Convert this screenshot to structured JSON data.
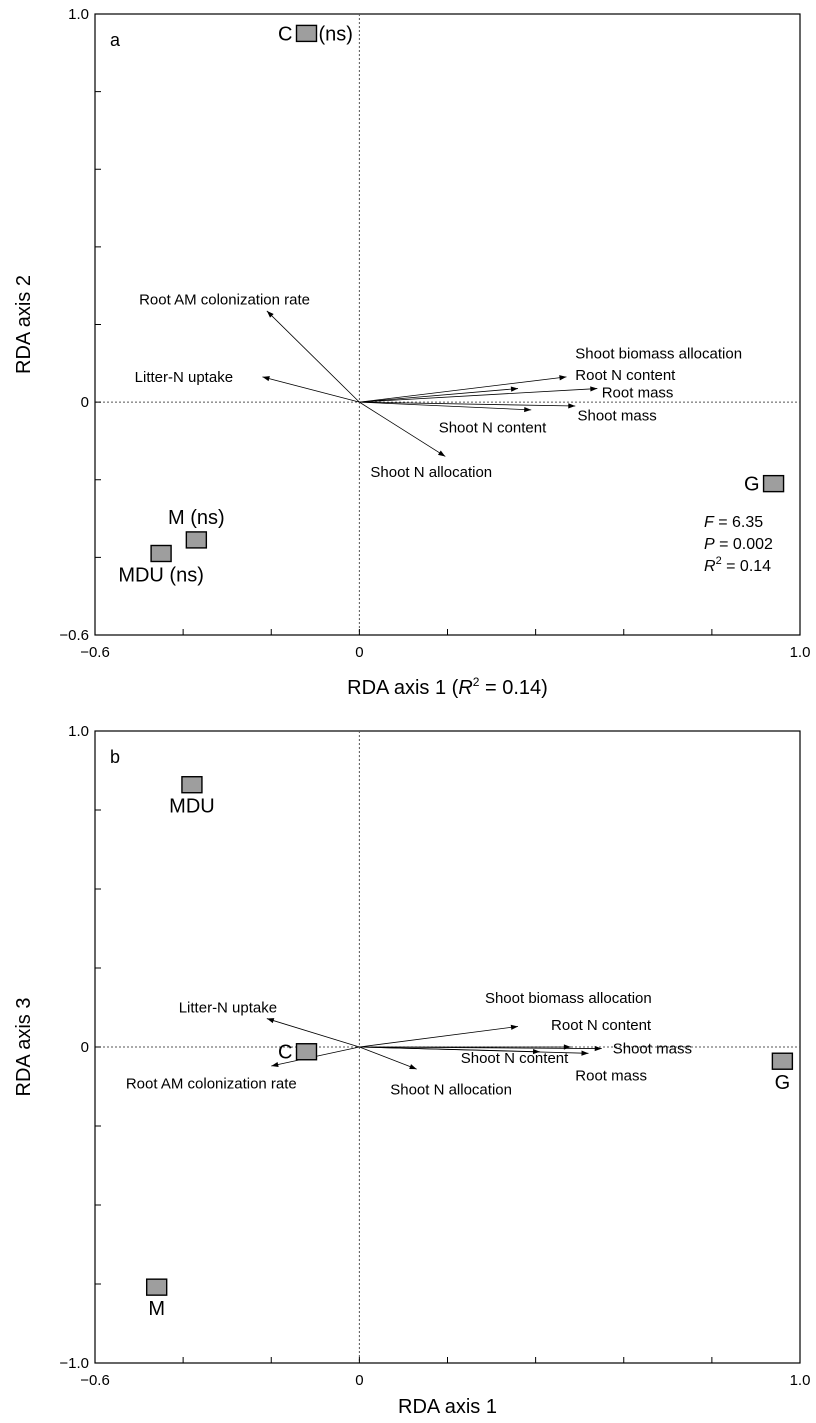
{
  "chart_data": [
    {
      "type": "scatter",
      "panel_label": "a",
      "xlabel_prefix": "RDA axis 1 (",
      "xlabel_r": "R",
      "xlabel_sup": "2",
      "xlabel_suffix": " = 0.14)",
      "ylabel": "RDA axis 2",
      "xlim": [
        -0.6,
        1.0
      ],
      "ylim": [
        -0.6,
        1.0
      ],
      "x_tick_labels": [
        {
          "value": -0.6,
          "label": "−0.6"
        },
        {
          "value": 0,
          "label": "0"
        },
        {
          "value": 1.0,
          "label": "1.0"
        }
      ],
      "y_tick_labels": [
        {
          "value": -0.6,
          "label": "−0.6"
        },
        {
          "value": 0,
          "label": "0"
        },
        {
          "value": 1.0,
          "label": "1.0"
        }
      ],
      "x_minor_ticks": [
        -0.4,
        -0.2,
        0.2,
        0.4,
        0.6,
        0.8
      ],
      "y_minor_ticks": [
        -0.4,
        -0.2,
        0.2,
        0.4,
        0.6,
        0.8
      ],
      "sites": [
        {
          "name": "C",
          "suffix": "(ns)",
          "x": -0.12,
          "y": 0.95,
          "label_pos": "left"
        },
        {
          "name": "M (ns)",
          "x": -0.37,
          "y": -0.355,
          "label_pos": "above"
        },
        {
          "name": "MDU (ns)",
          "x": -0.45,
          "y": -0.39,
          "label_pos": "below"
        },
        {
          "name": "G",
          "x": 0.94,
          "y": -0.21,
          "label_pos": "left"
        }
      ],
      "arrows": [
        {
          "label": "Root AM colonization rate",
          "x": -0.21,
          "y": 0.235,
          "lx": -0.5,
          "ly": 0.265,
          "anchor": "start"
        },
        {
          "label": "Litter-N uptake",
          "x": -0.22,
          "y": 0.065,
          "lx": -0.51,
          "ly": 0.065,
          "anchor": "start"
        },
        {
          "label": "Shoot biomass allocation",
          "x": 0.36,
          "y": 0.035,
          "lx": 0.49,
          "ly": 0.125,
          "anchor": "start"
        },
        {
          "label": "Root N content",
          "x": 0.47,
          "y": 0.065,
          "lx": 0.49,
          "ly": 0.07,
          "anchor": "start"
        },
        {
          "label": "Root mass",
          "x": 0.54,
          "y": 0.035,
          "lx": 0.55,
          "ly": 0.025,
          "anchor": "start"
        },
        {
          "label": "Shoot mass",
          "x": 0.49,
          "y": -0.01,
          "lx": 0.495,
          "ly": -0.035,
          "anchor": "start"
        },
        {
          "label": "Shoot N content",
          "x": 0.39,
          "y": -0.02,
          "lx": 0.18,
          "ly": -0.065,
          "anchor": "start"
        },
        {
          "label": "Shoot N allocation",
          "x": 0.195,
          "y": -0.14,
          "lx": 0.025,
          "ly": -0.18,
          "anchor": "start"
        }
      ],
      "stats": [
        {
          "sym": "F",
          "sup": "",
          "text": " = 6.35"
        },
        {
          "sym": "P",
          "sup": "",
          "text": " = 0.002"
        },
        {
          "sym": "R",
          "sup": "2",
          "text": " = 0.14"
        }
      ]
    },
    {
      "type": "scatter",
      "panel_label": "b",
      "xlabel": "RDA axis 1",
      "ylabel": "RDA axis 3",
      "xlim": [
        -0.6,
        1.0
      ],
      "ylim": [
        -1.0,
        1.0
      ],
      "x_tick_labels": [
        {
          "value": -0.6,
          "label": "−0.6"
        },
        {
          "value": 0,
          "label": "0"
        },
        {
          "value": 1.0,
          "label": "1.0"
        }
      ],
      "y_tick_labels": [
        {
          "value": -1.0,
          "label": "−1.0"
        },
        {
          "value": 0,
          "label": "0"
        },
        {
          "value": 1.0,
          "label": "1.0"
        }
      ],
      "x_minor_ticks": [
        -0.4,
        -0.2,
        0.2,
        0.4,
        0.6,
        0.8
      ],
      "y_minor_ticks": [
        -0.75,
        -0.5,
        -0.25,
        0.25,
        0.5,
        0.75
      ],
      "sites": [
        {
          "name": "MDU",
          "x": -0.38,
          "y": 0.83,
          "label_pos": "below"
        },
        {
          "name": "M",
          "x": -0.46,
          "y": -0.76,
          "label_pos": "below"
        },
        {
          "name": "C",
          "x": -0.12,
          "y": -0.015,
          "label_pos": "left"
        },
        {
          "name": "G",
          "x": 0.96,
          "y": -0.045,
          "label_pos": "below"
        }
      ],
      "arrows": [
        {
          "label": "Litter-N uptake",
          "x": -0.21,
          "y": 0.09,
          "lx": -0.41,
          "ly": 0.125,
          "anchor": "start"
        },
        {
          "label": "Root AM colonization rate",
          "x": -0.2,
          "y": -0.06,
          "lx": -0.53,
          "ly": -0.115,
          "anchor": "start"
        },
        {
          "label": "Shoot biomass allocation",
          "x": 0.36,
          "y": 0.065,
          "lx": 0.285,
          "ly": 0.155,
          "anchor": "start"
        },
        {
          "label": "Root N content",
          "x": 0.48,
          "y": 0.0,
          "lx": 0.435,
          "ly": 0.07,
          "anchor": "start"
        },
        {
          "label": "Shoot mass",
          "x": 0.55,
          "y": -0.005,
          "lx": 0.575,
          "ly": -0.005,
          "anchor": "start"
        },
        {
          "label": "Shoot N content",
          "x": 0.41,
          "y": -0.015,
          "lx": 0.23,
          "ly": -0.035,
          "anchor": "start"
        },
        {
          "label": "Root mass",
          "x": 0.52,
          "y": -0.02,
          "lx": 0.49,
          "ly": -0.09,
          "anchor": "start"
        },
        {
          "label": "Shoot N allocation",
          "x": 0.13,
          "y": -0.07,
          "lx": 0.07,
          "ly": -0.135,
          "anchor": "start"
        }
      ]
    }
  ]
}
